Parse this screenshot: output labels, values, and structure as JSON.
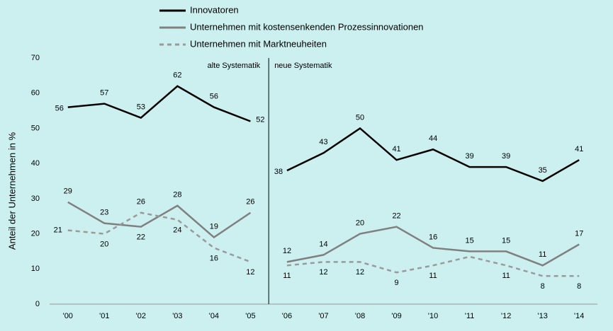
{
  "chart_data": {
    "type": "line",
    "y_label": "Anteil der Unternehmen in %",
    "categories": [
      "'00",
      "'01",
      "'02",
      "'03",
      "'04",
      "'05",
      "'06",
      "'07",
      "'08",
      "'09",
      "'10",
      "'11",
      "'12",
      "'13",
      "'14"
    ],
    "series": [
      {
        "name": "Innovatoren",
        "color": "#000000",
        "dash": false,
        "values": [
          56,
          57,
          53,
          62,
          56,
          52,
          38,
          43,
          50,
          41,
          44,
          39,
          39,
          35,
          41
        ]
      },
      {
        "name": "Unternehmen mit kostensenkenden Prozessinnovationen",
        "color": "#808080",
        "dash": false,
        "values": [
          29,
          23,
          22,
          28,
          19,
          26,
          12,
          14,
          20,
          22,
          16,
          15,
          15,
          11,
          17
        ]
      },
      {
        "name": "Unternehmen mit Marktneuheiten",
        "color": "#9a9a9a",
        "dash": true,
        "values": [
          21,
          20,
          26,
          24,
          16,
          12,
          11,
          12,
          12,
          9,
          11,
          13.5,
          11,
          8,
          8
        ],
        "value_labels": [
          "21",
          "20",
          "26",
          "24",
          "16",
          "12",
          "11",
          "12",
          "12",
          "9",
          "11",
          null,
          "11",
          "8",
          "8"
        ]
      }
    ],
    "break_after": 5,
    "annotations": [
      "alte Systematik",
      "neue Systematik"
    ],
    "ylim": [
      0,
      70
    ],
    "yticks": [
      0,
      10,
      20,
      30,
      40,
      50,
      60,
      70
    ]
  }
}
